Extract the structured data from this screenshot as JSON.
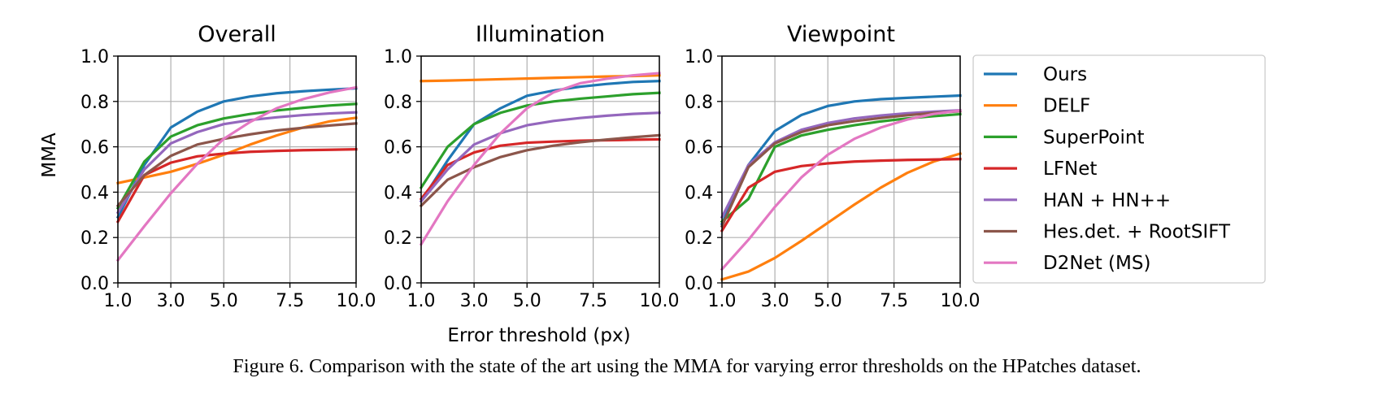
{
  "figure": {
    "caption": "Figure 6. Comparison with the state of the art using the MMA for varying error thresholds on the HPatches dataset.",
    "shared_ylabel": "MMA",
    "shared_xlabel": "Error threshold (px)"
  },
  "chart_data": [
    {
      "type": "line",
      "title": "Overall",
      "xlabel": "",
      "ylabel": "MMA",
      "xlim": [
        1,
        10
      ],
      "ylim": [
        0,
        1
      ],
      "xticks": [
        "1.0",
        "3.0",
        "5.0",
        "7.5",
        "10.0"
      ],
      "xtick_values": [
        1,
        3,
        5,
        7.5,
        10
      ],
      "yticks": [
        "0.0",
        "0.2",
        "0.4",
        "0.6",
        "0.8",
        "1.0"
      ],
      "ytick_values": [
        0,
        0.2,
        0.4,
        0.6,
        0.8,
        1.0
      ],
      "grid": true,
      "x": [
        1,
        2,
        3,
        4,
        5,
        6,
        7,
        8,
        9,
        10
      ],
      "series": [
        {
          "name": "Ours",
          "values": [
            0.29,
            0.52,
            0.685,
            0.755,
            0.8,
            0.822,
            0.836,
            0.845,
            0.852,
            0.858
          ]
        },
        {
          "name": "DELF",
          "values": [
            0.44,
            0.465,
            0.49,
            0.525,
            0.565,
            0.61,
            0.65,
            0.685,
            0.712,
            0.728
          ]
        },
        {
          "name": "SuperPoint",
          "values": [
            0.33,
            0.535,
            0.645,
            0.695,
            0.725,
            0.745,
            0.76,
            0.772,
            0.782,
            0.789
          ]
        },
        {
          "name": "LFNet",
          "values": [
            0.27,
            0.475,
            0.53,
            0.558,
            0.57,
            0.578,
            0.582,
            0.585,
            0.587,
            0.589
          ]
        },
        {
          "name": "HAN + HN++",
          "values": [
            0.31,
            0.5,
            0.615,
            0.665,
            0.7,
            0.718,
            0.73,
            0.74,
            0.747,
            0.752
          ]
        },
        {
          "name": "Hes.det. + RootSIFT",
          "values": [
            0.34,
            0.475,
            0.56,
            0.61,
            0.635,
            0.655,
            0.672,
            0.684,
            0.694,
            0.703
          ]
        },
        {
          "name": "D2Net (MS)",
          "values": [
            0.1,
            0.25,
            0.395,
            0.525,
            0.635,
            0.71,
            0.77,
            0.81,
            0.84,
            0.862
          ]
        }
      ]
    },
    {
      "type": "line",
      "title": "Illumination",
      "xlabel": "Error threshold (px)",
      "ylabel": "",
      "xlim": [
        1,
        10
      ],
      "ylim": [
        0,
        1
      ],
      "xticks": [
        "1.0",
        "3.0",
        "5.0",
        "7.5",
        "10.0"
      ],
      "xtick_values": [
        1,
        3,
        5,
        7.5,
        10
      ],
      "yticks": [
        "0.0",
        "0.2",
        "0.4",
        "0.6",
        "0.8",
        "1.0"
      ],
      "ytick_values": [
        0,
        0.2,
        0.4,
        0.6,
        0.8,
        1.0
      ],
      "grid": true,
      "x": [
        1,
        2,
        3,
        4,
        5,
        6,
        7,
        8,
        9,
        10
      ],
      "series": [
        {
          "name": "Ours",
          "values": [
            0.36,
            0.54,
            0.7,
            0.77,
            0.825,
            0.848,
            0.865,
            0.877,
            0.886,
            0.89
          ]
        },
        {
          "name": "DELF",
          "values": [
            0.89,
            0.892,
            0.895,
            0.898,
            0.901,
            0.904,
            0.907,
            0.91,
            0.912,
            0.915
          ]
        },
        {
          "name": "SuperPoint",
          "values": [
            0.42,
            0.6,
            0.7,
            0.75,
            0.782,
            0.8,
            0.812,
            0.822,
            0.832,
            0.838
          ]
        },
        {
          "name": "LFNet",
          "values": [
            0.37,
            0.52,
            0.575,
            0.605,
            0.618,
            0.623,
            0.627,
            0.629,
            0.631,
            0.633
          ]
        },
        {
          "name": "HAN + HN++",
          "values": [
            0.36,
            0.5,
            0.61,
            0.66,
            0.695,
            0.714,
            0.727,
            0.737,
            0.745,
            0.75
          ]
        },
        {
          "name": "Hes.det. + RootSIFT",
          "values": [
            0.34,
            0.455,
            0.51,
            0.555,
            0.585,
            0.605,
            0.62,
            0.632,
            0.642,
            0.651
          ]
        },
        {
          "name": "D2Net (MS)",
          "values": [
            0.17,
            0.36,
            0.52,
            0.66,
            0.77,
            0.84,
            0.88,
            0.9,
            0.915,
            0.925
          ]
        }
      ]
    },
    {
      "type": "line",
      "title": "Viewpoint",
      "xlabel": "",
      "ylabel": "",
      "xlim": [
        1,
        10
      ],
      "ylim": [
        0,
        1
      ],
      "xticks": [
        "1.0",
        "3.0",
        "5.0",
        "7.5",
        "10.0"
      ],
      "xtick_values": [
        1,
        3,
        5,
        7.5,
        10
      ],
      "yticks": [
        "0.0",
        "0.2",
        "0.4",
        "0.6",
        "0.8",
        "1.0"
      ],
      "ytick_values": [
        0,
        0.2,
        0.4,
        0.6,
        0.8,
        1.0
      ],
      "grid": true,
      "x": [
        1,
        2,
        3,
        4,
        5,
        6,
        7,
        8,
        9,
        10
      ],
      "series": [
        {
          "name": "Ours",
          "values": [
            0.26,
            0.52,
            0.67,
            0.74,
            0.78,
            0.8,
            0.81,
            0.816,
            0.821,
            0.826
          ]
        },
        {
          "name": "DELF",
          "values": [
            0.015,
            0.05,
            0.11,
            0.185,
            0.265,
            0.345,
            0.42,
            0.485,
            0.535,
            0.57
          ]
        },
        {
          "name": "SuperPoint",
          "values": [
            0.27,
            0.37,
            0.6,
            0.65,
            0.675,
            0.695,
            0.712,
            0.725,
            0.735,
            0.744
          ]
        },
        {
          "name": "LFNet",
          "values": [
            0.23,
            0.42,
            0.49,
            0.515,
            0.527,
            0.535,
            0.539,
            0.542,
            0.544,
            0.546
          ]
        },
        {
          "name": "HAN + HN++",
          "values": [
            0.29,
            0.52,
            0.62,
            0.675,
            0.705,
            0.725,
            0.738,
            0.748,
            0.755,
            0.761
          ]
        },
        {
          "name": "Hes.det. + RootSIFT",
          "values": [
            0.25,
            0.51,
            0.615,
            0.665,
            0.695,
            0.713,
            0.727,
            0.739,
            0.749,
            0.757
          ]
        },
        {
          "name": "D2Net (MS)",
          "values": [
            0.06,
            0.19,
            0.335,
            0.465,
            0.565,
            0.635,
            0.685,
            0.72,
            0.745,
            0.76
          ]
        }
      ]
    }
  ],
  "legend": {
    "placement": "right",
    "entries": [
      {
        "name": "Ours",
        "color": "#1f77b4"
      },
      {
        "name": "DELF",
        "color": "#ff7f0e"
      },
      {
        "name": "SuperPoint",
        "color": "#2ca02c"
      },
      {
        "name": "LFNet",
        "color": "#d62728"
      },
      {
        "name": "HAN + HN++",
        "color": "#9467bd"
      },
      {
        "name": "Hes.det. + RootSIFT",
        "color": "#8c564b"
      },
      {
        "name": "D2Net (MS)",
        "color": "#e377c2"
      }
    ]
  }
}
